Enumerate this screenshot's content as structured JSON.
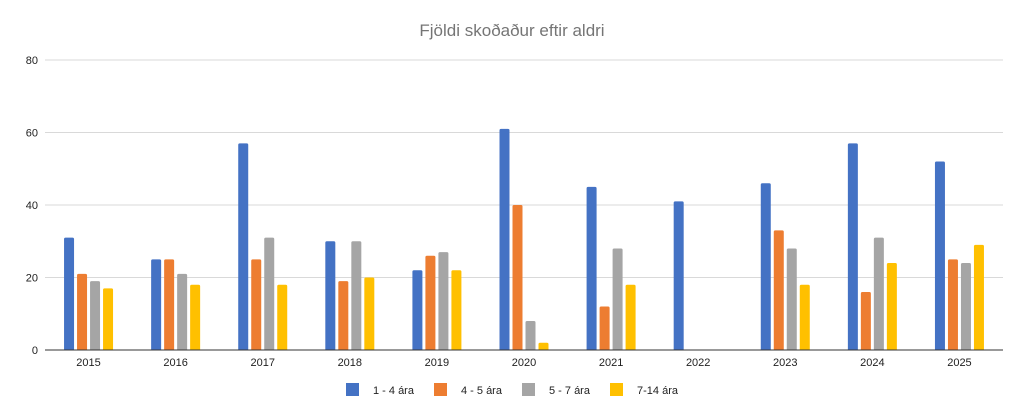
{
  "chart_data": {
    "type": "bar",
    "title": "Fjöldi skoðaður eftir aldri",
    "xlabel": "",
    "ylabel": "",
    "ylim": [
      0,
      80
    ],
    "yticks": [
      0,
      20,
      40,
      60,
      80
    ],
    "grid": true,
    "legend_position": "bottom",
    "categories": [
      "2015",
      "2016",
      "2017",
      "2018",
      "2019",
      "2020",
      "2021",
      "2022",
      "2023",
      "2024",
      "2025"
    ],
    "series": [
      {
        "name": "1 - 4 ára",
        "color": "#4472c4",
        "values": [
          31,
          25,
          57,
          30,
          22,
          61,
          45,
          41,
          46,
          57,
          52
        ]
      },
      {
        "name": "4 - 5 ára",
        "color": "#ed7d31",
        "values": [
          21,
          25,
          25,
          19,
          26,
          40,
          12,
          0,
          33,
          16,
          25
        ]
      },
      {
        "name": "5 - 7 ára",
        "color": "#a5a5a5",
        "values": [
          19,
          21,
          31,
          30,
          27,
          8,
          28,
          0,
          28,
          31,
          24
        ]
      },
      {
        "name": "7-14 ára",
        "color": "#ffc000",
        "values": [
          17,
          18,
          18,
          20,
          22,
          2,
          18,
          0,
          18,
          24,
          29
        ]
      }
    ]
  }
}
